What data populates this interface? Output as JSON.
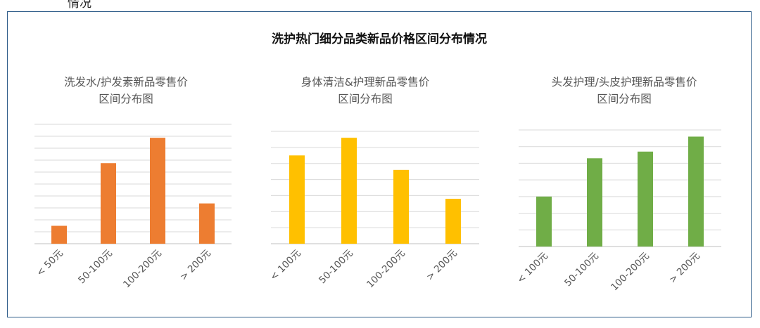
{
  "header_fragment": "情况",
  "title": "洗护热门细分品类新品价格区间分布情况",
  "chart_data": [
    {
      "type": "bar",
      "title_line1": "洗发水/护发素新品零售价",
      "title_line2": "区间分布图",
      "categories": [
        "< 50元",
        "50-100元",
        "100-200元",
        "> 200元"
      ],
      "values": [
        1.2,
        5.4,
        7.1,
        2.7
      ],
      "ylim": [
        0,
        8
      ],
      "grid": true,
      "color": "#ed7d31"
    },
    {
      "type": "bar",
      "title_line1": "身体清洁&护理新品零售价",
      "title_line2": "区间分布图",
      "categories": [
        "< 100元",
        "50-100元",
        "100-200元",
        "> 200元"
      ],
      "values": [
        5.5,
        6.6,
        4.6,
        2.8
      ],
      "ylim": [
        0,
        7
      ],
      "grid": true,
      "color": "#ffc000"
    },
    {
      "type": "bar",
      "title_line1": "头发护理/头皮护理新品零售价",
      "title_line2": "区间分布图",
      "categories": [
        "< 100元",
        "50-100元",
        "100-200元",
        "> 200元"
      ],
      "values": [
        3.0,
        5.3,
        5.7,
        6.6
      ],
      "ylim": [
        0,
        7
      ],
      "grid": true,
      "color": "#70ad47"
    }
  ]
}
